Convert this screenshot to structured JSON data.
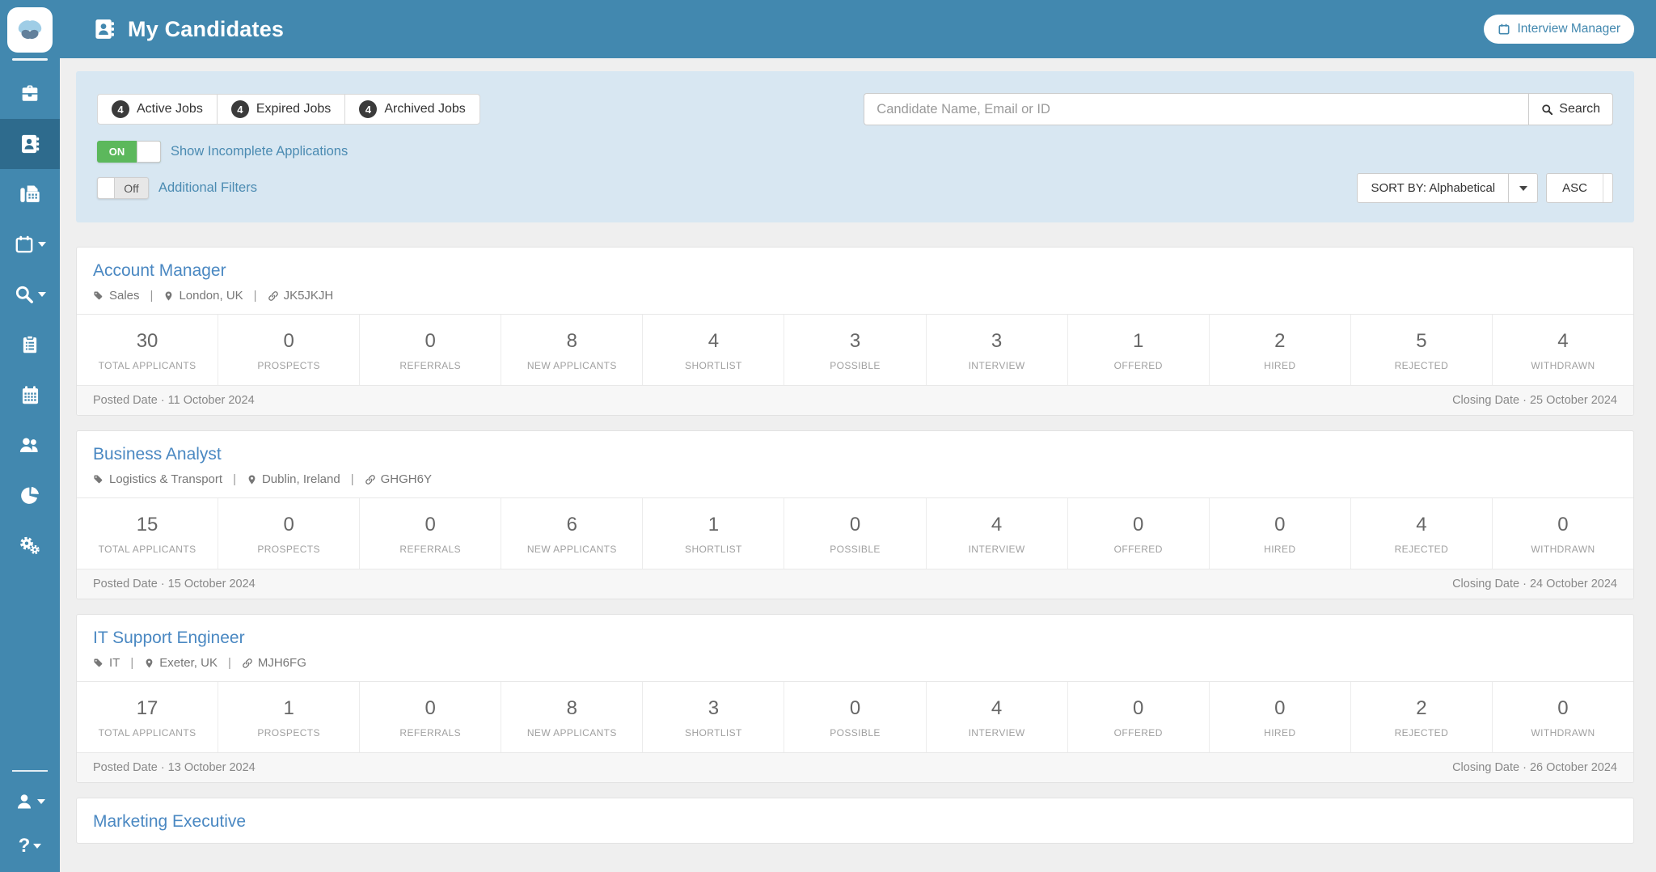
{
  "header": {
    "title": "My Candidates",
    "interview_manager_label": "Interview Manager"
  },
  "filters": {
    "tabs": [
      {
        "count": "4",
        "label": "Active Jobs"
      },
      {
        "count": "4",
        "label": "Expired Jobs"
      },
      {
        "count": "4",
        "label": "Archived Jobs"
      }
    ],
    "search": {
      "placeholder": "Candidate Name, Email or ID",
      "button_label": "Search"
    },
    "toggles": [
      {
        "state": "ON",
        "label": "Show Incomplete Applications"
      },
      {
        "state": "Off",
        "label": "Additional Filters"
      }
    ],
    "sort": {
      "by_label": "SORT BY: Alphabetical",
      "direction_label": "ASC"
    }
  },
  "stat_labels": [
    "TOTAL APPLICANTS",
    "PROSPECTS",
    "REFERRALS",
    "NEW APPLICANTS",
    "SHORTLIST",
    "POSSIBLE",
    "INTERVIEW",
    "OFFERED",
    "HIRED",
    "REJECTED",
    "WITHDRAWN"
  ],
  "jobs": [
    {
      "title": "Account Manager",
      "category": "Sales",
      "location": "London, UK",
      "ref": "JK5JKJH",
      "stats": [
        30,
        0,
        0,
        8,
        4,
        3,
        3,
        1,
        2,
        5,
        4
      ],
      "posted": "Posted Date · 11 October 2024",
      "closing": "Closing Date · 25 October 2024"
    },
    {
      "title": "Business Analyst",
      "category": "Logistics & Transport",
      "location": "Dublin, Ireland",
      "ref": "GHGH6Y",
      "stats": [
        15,
        0,
        0,
        6,
        1,
        0,
        4,
        0,
        0,
        4,
        0
      ],
      "posted": "Posted Date · 15 October 2024",
      "closing": "Closing Date · 24 October 2024"
    },
    {
      "title": "IT Support Engineer",
      "category": "IT",
      "location": "Exeter, UK",
      "ref": "MJH6FG",
      "stats": [
        17,
        1,
        0,
        8,
        3,
        0,
        4,
        0,
        0,
        2,
        0
      ],
      "posted": "Posted Date · 13 October 2024",
      "closing": "Closing Date · 26 October 2024"
    },
    {
      "title": "Marketing Executive"
    }
  ],
  "icons": {
    "logo": "butterfly",
    "nav": [
      "briefcase",
      "address-book",
      "fax",
      "calendar-dropdown",
      "search-dropdown",
      "clipboard",
      "calendar",
      "users",
      "pie-chart",
      "gears"
    ],
    "nav_bottom": [
      "user-dropdown",
      "help-dropdown"
    ],
    "header": [
      "address-book",
      "calendar"
    ],
    "search_button": "magnifier",
    "job_meta": [
      "tag",
      "map-marker",
      "link"
    ]
  },
  "colors": {
    "header_bg": "#4288af",
    "sidebar_active": "#2e6b8d",
    "panel_bg": "#d8e7f2",
    "toggle_on": "#5cb85c",
    "link": "#4b8bb2",
    "job_title": "#4a88c2",
    "badge": "#3b3b3b"
  }
}
